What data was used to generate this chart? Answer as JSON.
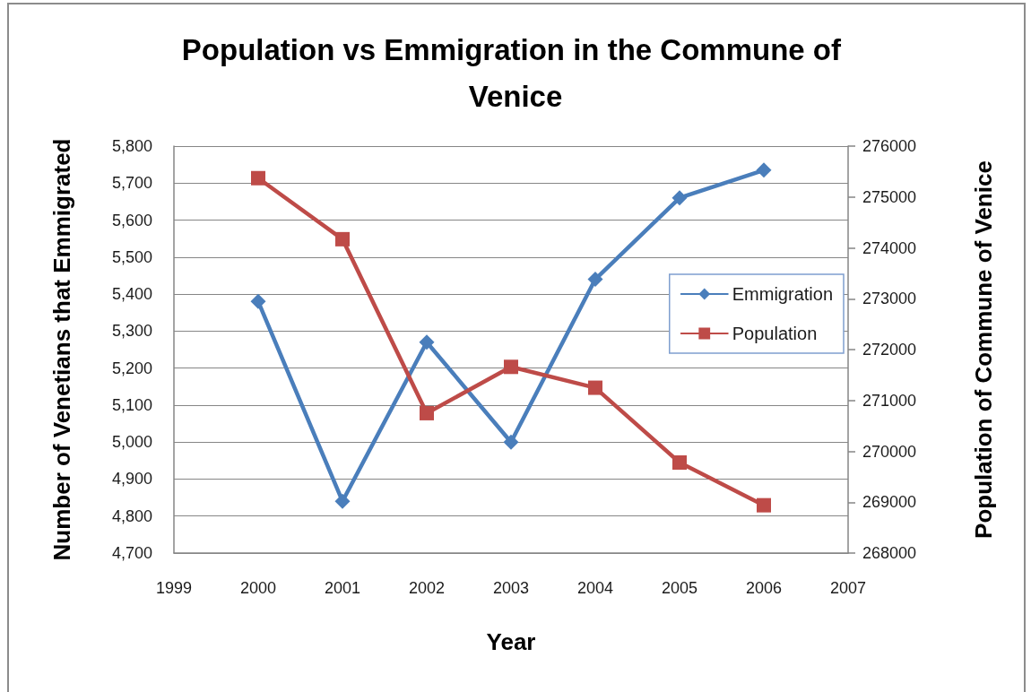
{
  "chart_data": {
    "type": "line",
    "title": "Population vs Emmigration in the Commune of Venice",
    "xlabel": "Year",
    "ylabel": "Number of Venetians that Emmigrated",
    "y2label": "Population of Commune of Venice",
    "x": [
      2000,
      2001,
      2002,
      2003,
      2004,
      2005,
      2006
    ],
    "series": [
      {
        "name": "Emmigration",
        "color": "#4a7ebb",
        "marker": "diamond",
        "values": [
          5380,
          4840,
          5270,
          5000,
          5440,
          5660,
          5735
        ]
      },
      {
        "name": "Population",
        "color": "#be4b48",
        "marker": "square",
        "axis": "y2",
        "values": [
          275370,
          274170,
          270750,
          271660,
          271250,
          269780,
          268940
        ]
      }
    ],
    "xlim": [
      1999,
      2007
    ],
    "xticks": [
      1999,
      2000,
      2001,
      2002,
      2003,
      2004,
      2005,
      2006,
      2007
    ],
    "ylim": [
      4700,
      5800
    ],
    "yticks": [
      {
        "value": 4700,
        "label": "4,700"
      },
      {
        "value": 4800,
        "label": "4,800"
      },
      {
        "value": 4900,
        "label": "4,900"
      },
      {
        "value": 5000,
        "label": "5,000"
      },
      {
        "value": 5100,
        "label": "5,100"
      },
      {
        "value": 5200,
        "label": "5,200"
      },
      {
        "value": 5300,
        "label": "5,300"
      },
      {
        "value": 5400,
        "label": "5,400"
      },
      {
        "value": 5500,
        "label": "5,500"
      },
      {
        "value": 5600,
        "label": "5,600"
      },
      {
        "value": 5700,
        "label": "5,700"
      },
      {
        "value": 5800,
        "label": "5,800"
      }
    ],
    "y2lim": [
      268000,
      276000
    ],
    "y2ticks": [
      268000,
      269000,
      270000,
      271000,
      272000,
      273000,
      274000,
      275000,
      276000
    ],
    "grid": "y",
    "legend": "right",
    "line_style": "solid"
  }
}
